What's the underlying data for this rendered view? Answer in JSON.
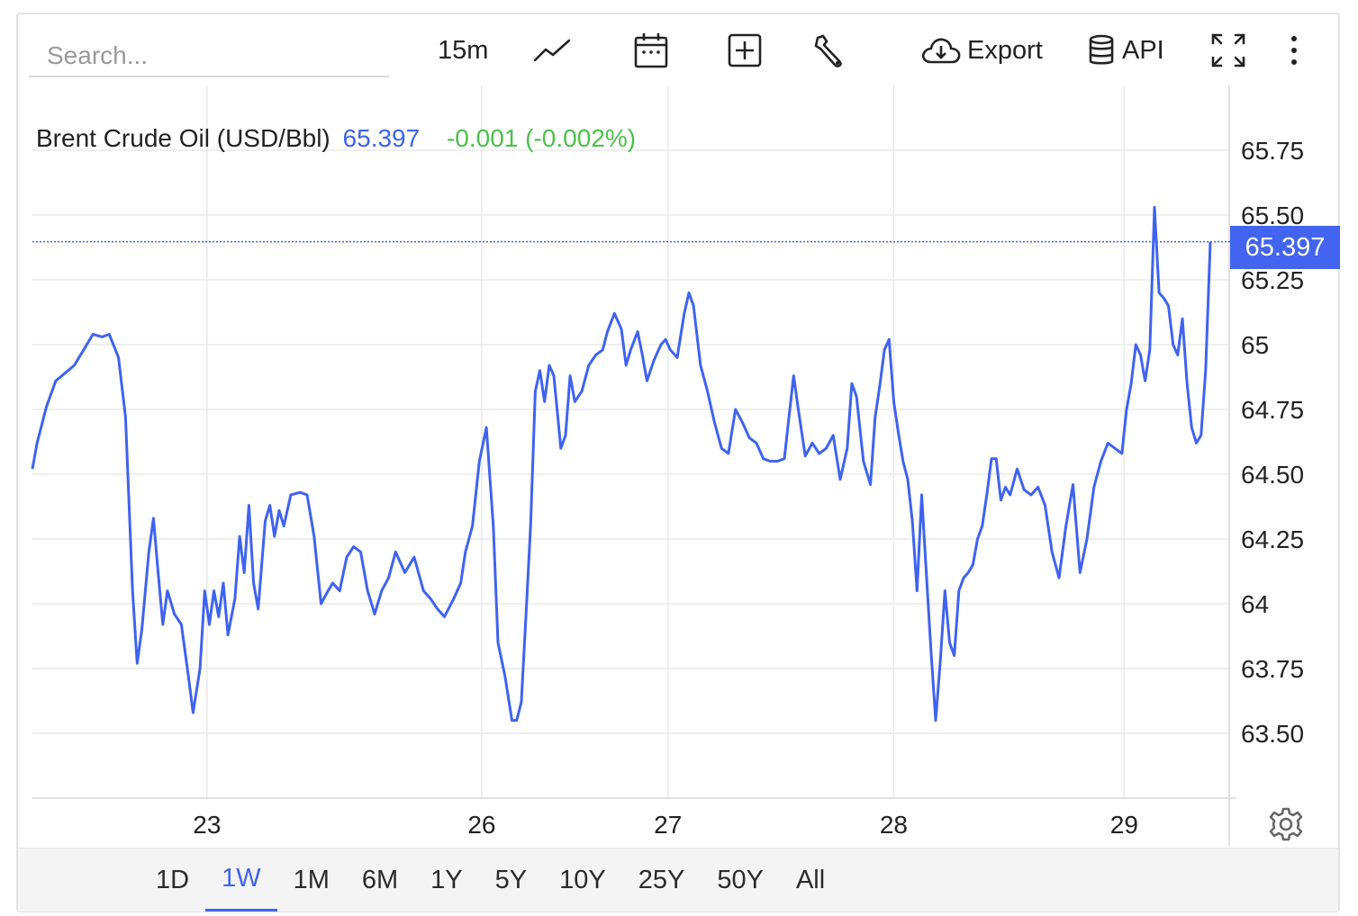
{
  "toolbar": {
    "search_placeholder": "Search...",
    "interval": "15m",
    "export_label": "Export",
    "api_label": "API"
  },
  "legend": {
    "name": "Brent Crude Oil (USD/Bbl)",
    "last": "65.397",
    "change": "-0.001 (-0.002%)"
  },
  "price_tag": "65.397",
  "ranges": [
    "1D",
    "1W",
    "1M",
    "6M",
    "1Y",
    "5Y",
    "10Y",
    "25Y",
    "50Y",
    "All"
  ],
  "active_range": "1W",
  "colors": {
    "line": "#3f63f0",
    "positive": "#4cc04a",
    "grid": "#e9e9e9"
  },
  "icons": [
    "line-chart-icon",
    "calendar-icon",
    "add-indicator-icon",
    "wrench-icon",
    "cloud-download-icon",
    "database-icon",
    "fullscreen-icon",
    "more-vertical-icon",
    "gear-icon"
  ],
  "chart_data": {
    "type": "line",
    "y_ticks": [
      {
        "value": 63.5,
        "label": "63.50"
      },
      {
        "value": 63.75,
        "label": "63.75"
      },
      {
        "value": 64.0,
        "label": "64"
      },
      {
        "value": 64.25,
        "label": "64.25"
      },
      {
        "value": 64.5,
        "label": "64.50"
      },
      {
        "value": 64.75,
        "label": "64.75"
      },
      {
        "value": 65.0,
        "label": "65"
      },
      {
        "value": 65.25,
        "label": "65.25"
      },
      {
        "value": 65.5,
        "label": "65.50"
      },
      {
        "value": 65.75,
        "label": "65.75"
      }
    ],
    "x_ticks": [
      {
        "t": 0.75,
        "label": "23"
      },
      {
        "t": 1.93,
        "label": "26"
      },
      {
        "t": 2.73,
        "label": "27"
      },
      {
        "t": 3.7,
        "label": "28"
      },
      {
        "t": 4.69,
        "label": "29"
      }
    ],
    "xlim": [
      0,
      5.0
    ],
    "ylim": [
      63.25,
      66.0
    ],
    "last_price": 65.397,
    "series": [
      {
        "values": [
          [
            0.0,
            64.52
          ],
          [
            0.02,
            64.62
          ],
          [
            0.06,
            64.76
          ],
          [
            0.1,
            64.86
          ],
          [
            0.14,
            64.89
          ],
          [
            0.18,
            64.92
          ],
          [
            0.22,
            64.98
          ],
          [
            0.26,
            65.04
          ],
          [
            0.3,
            65.03
          ],
          [
            0.33,
            65.04
          ],
          [
            0.37,
            64.95
          ],
          [
            0.4,
            64.72
          ],
          [
            0.43,
            64.05
          ],
          [
            0.45,
            63.77
          ],
          [
            0.47,
            63.9
          ],
          [
            0.5,
            64.2
          ],
          [
            0.52,
            64.33
          ],
          [
            0.54,
            64.12
          ],
          [
            0.56,
            63.92
          ],
          [
            0.58,
            64.05
          ],
          [
            0.61,
            63.96
          ],
          [
            0.64,
            63.92
          ],
          [
            0.67,
            63.72
          ],
          [
            0.69,
            63.58
          ],
          [
            0.72,
            63.75
          ],
          [
            0.74,
            64.05
          ],
          [
            0.76,
            63.92
          ],
          [
            0.78,
            64.05
          ],
          [
            0.8,
            63.95
          ],
          [
            0.82,
            64.08
          ],
          [
            0.84,
            63.88
          ],
          [
            0.87,
            64.02
          ],
          [
            0.89,
            64.26
          ],
          [
            0.91,
            64.12
          ],
          [
            0.93,
            64.38
          ],
          [
            0.95,
            64.08
          ],
          [
            0.97,
            63.98
          ],
          [
            1.0,
            64.32
          ],
          [
            1.02,
            64.38
          ],
          [
            1.04,
            64.26
          ],
          [
            1.06,
            64.36
          ],
          [
            1.08,
            64.3
          ],
          [
            1.11,
            64.42
          ],
          [
            1.15,
            64.43
          ],
          [
            1.18,
            64.42
          ],
          [
            1.21,
            64.26
          ],
          [
            1.24,
            64.0
          ],
          [
            1.27,
            64.05
          ],
          [
            1.29,
            64.08
          ],
          [
            1.32,
            64.05
          ],
          [
            1.35,
            64.18
          ],
          [
            1.38,
            64.22
          ],
          [
            1.41,
            64.2
          ],
          [
            1.44,
            64.05
          ],
          [
            1.47,
            63.96
          ],
          [
            1.5,
            64.05
          ],
          [
            1.53,
            64.1
          ],
          [
            1.56,
            64.2
          ],
          [
            1.6,
            64.12
          ],
          [
            1.64,
            64.18
          ],
          [
            1.68,
            64.05
          ],
          [
            1.71,
            64.02
          ],
          [
            1.74,
            63.98
          ],
          [
            1.77,
            63.95
          ],
          [
            1.81,
            64.02
          ],
          [
            1.84,
            64.08
          ],
          [
            1.86,
            64.2
          ],
          [
            1.89,
            64.3
          ],
          [
            1.92,
            64.55
          ],
          [
            1.95,
            64.68
          ],
          [
            1.98,
            64.3
          ],
          [
            2.0,
            63.85
          ],
          [
            2.03,
            63.72
          ],
          [
            2.06,
            63.55
          ],
          [
            2.08,
            63.55
          ],
          [
            2.1,
            63.62
          ],
          [
            2.12,
            63.95
          ],
          [
            2.14,
            64.3
          ],
          [
            2.16,
            64.82
          ],
          [
            2.18,
            64.9
          ],
          [
            2.2,
            64.78
          ],
          [
            2.22,
            64.92
          ],
          [
            2.24,
            64.88
          ],
          [
            2.27,
            64.6
          ],
          [
            2.29,
            64.65
          ],
          [
            2.31,
            64.88
          ],
          [
            2.33,
            64.78
          ],
          [
            2.36,
            64.82
          ],
          [
            2.39,
            64.92
          ],
          [
            2.42,
            64.96
          ],
          [
            2.45,
            64.98
          ],
          [
            2.47,
            65.05
          ],
          [
            2.5,
            65.12
          ],
          [
            2.53,
            65.06
          ],
          [
            2.55,
            64.92
          ],
          [
            2.57,
            64.98
          ],
          [
            2.6,
            65.05
          ],
          [
            2.62,
            64.96
          ],
          [
            2.64,
            64.86
          ],
          [
            2.67,
            64.94
          ],
          [
            2.7,
            65.0
          ],
          [
            2.72,
            65.02
          ],
          [
            2.74,
            64.98
          ],
          [
            2.77,
            64.95
          ],
          [
            2.8,
            65.12
          ],
          [
            2.82,
            65.2
          ],
          [
            2.84,
            65.15
          ],
          [
            2.87,
            64.92
          ],
          [
            2.9,
            64.82
          ],
          [
            2.93,
            64.7
          ],
          [
            2.96,
            64.6
          ],
          [
            2.99,
            64.58
          ],
          [
            3.02,
            64.75
          ],
          [
            3.05,
            64.7
          ],
          [
            3.08,
            64.64
          ],
          [
            3.11,
            64.62
          ],
          [
            3.14,
            64.56
          ],
          [
            3.17,
            64.55
          ],
          [
            3.2,
            64.55
          ],
          [
            3.23,
            64.56
          ],
          [
            3.25,
            64.72
          ],
          [
            3.27,
            64.88
          ],
          [
            3.29,
            64.75
          ],
          [
            3.32,
            64.57
          ],
          [
            3.35,
            64.62
          ],
          [
            3.38,
            64.58
          ],
          [
            3.41,
            64.6
          ],
          [
            3.44,
            64.65
          ],
          [
            3.47,
            64.48
          ],
          [
            3.5,
            64.6
          ],
          [
            3.52,
            64.85
          ],
          [
            3.54,
            64.8
          ],
          [
            3.57,
            64.55
          ],
          [
            3.6,
            64.46
          ],
          [
            3.62,
            64.72
          ],
          [
            3.64,
            64.84
          ],
          [
            3.66,
            64.98
          ],
          [
            3.68,
            65.02
          ],
          [
            3.7,
            64.78
          ],
          [
            3.72,
            64.66
          ],
          [
            3.74,
            64.55
          ],
          [
            3.76,
            64.48
          ],
          [
            3.78,
            64.32
          ],
          [
            3.8,
            64.05
          ],
          [
            3.82,
            64.42
          ],
          [
            3.84,
            64.12
          ],
          [
            3.86,
            63.82
          ],
          [
            3.88,
            63.55
          ],
          [
            3.9,
            63.78
          ],
          [
            3.92,
            64.05
          ],
          [
            3.94,
            63.85
          ],
          [
            3.96,
            63.8
          ],
          [
            3.98,
            64.05
          ],
          [
            4.0,
            64.1
          ],
          [
            4.02,
            64.12
          ],
          [
            4.04,
            64.15
          ],
          [
            4.06,
            64.25
          ],
          [
            4.08,
            64.3
          ],
          [
            4.1,
            64.42
          ],
          [
            4.12,
            64.56
          ],
          [
            4.14,
            64.56
          ],
          [
            4.16,
            64.4
          ],
          [
            4.18,
            64.45
          ],
          [
            4.2,
            64.42
          ],
          [
            4.23,
            64.52
          ],
          [
            4.26,
            64.44
          ],
          [
            4.29,
            64.42
          ],
          [
            4.32,
            64.45
          ],
          [
            4.35,
            64.38
          ],
          [
            4.38,
            64.2
          ],
          [
            4.41,
            64.1
          ],
          [
            4.44,
            64.3
          ],
          [
            4.47,
            64.46
          ],
          [
            4.5,
            64.12
          ],
          [
            4.53,
            64.25
          ],
          [
            4.56,
            64.45
          ],
          [
            4.59,
            64.55
          ],
          [
            4.62,
            64.62
          ],
          [
            4.65,
            64.6
          ],
          [
            4.68,
            64.58
          ],
          [
            4.7,
            64.75
          ],
          [
            4.72,
            64.85
          ],
          [
            4.74,
            65.0
          ],
          [
            4.76,
            64.96
          ],
          [
            4.78,
            64.86
          ],
          [
            4.8,
            64.98
          ],
          [
            4.82,
            65.53
          ],
          [
            4.84,
            65.2
          ],
          [
            4.86,
            65.18
          ],
          [
            4.88,
            65.15
          ],
          [
            4.9,
            65.0
          ],
          [
            4.92,
            64.96
          ],
          [
            4.94,
            65.1
          ],
          [
            4.96,
            64.85
          ],
          [
            4.98,
            64.68
          ],
          [
            5.0,
            64.62
          ],
          [
            5.02,
            64.65
          ],
          [
            5.04,
            64.9
          ],
          [
            5.06,
            65.397
          ]
        ]
      }
    ]
  }
}
